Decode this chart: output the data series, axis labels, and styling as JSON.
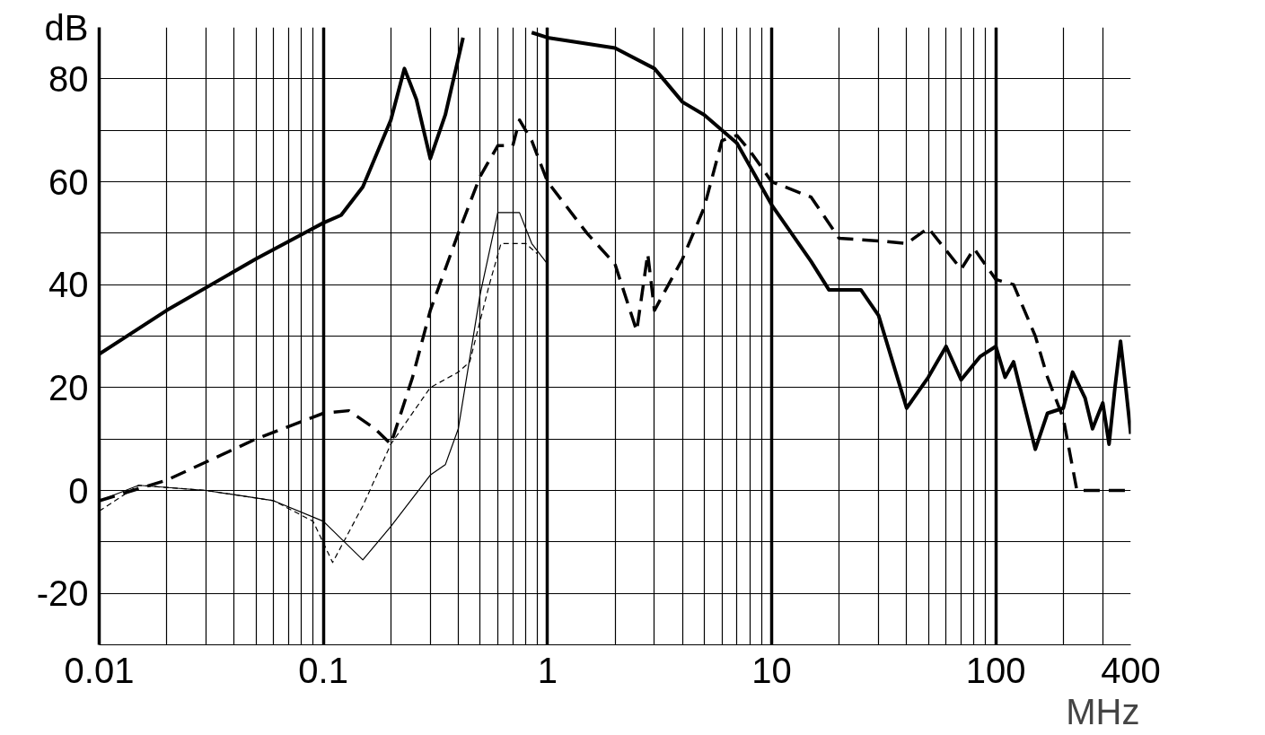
{
  "chart_data": {
    "type": "line",
    "xlabel": "MHz",
    "ylabel": "dB",
    "log": "x",
    "grid": true,
    "marker": "none",
    "xlim": [
      0.01,
      400
    ],
    "ylim": [
      -30,
      90
    ],
    "xticks": [
      0.01,
      {
        "value": 0.02,
        "label": null
      },
      {
        "value": 0.03,
        "label": null
      },
      {
        "value": 0.04,
        "label": null
      },
      {
        "value": 0.05,
        "label": null
      },
      {
        "value": 0.06,
        "label": null
      },
      {
        "value": 0.07,
        "label": null
      },
      {
        "value": 0.08,
        "label": null
      },
      {
        "value": 0.09,
        "label": null
      },
      0.1,
      {
        "value": 0.2,
        "label": null
      },
      {
        "value": 0.3,
        "label": null
      },
      {
        "value": 0.4,
        "label": null
      },
      {
        "value": 0.5,
        "label": null
      },
      {
        "value": 0.6,
        "label": null
      },
      {
        "value": 0.7,
        "label": null
      },
      {
        "value": 0.8,
        "label": null
      },
      {
        "value": 0.9,
        "label": null
      },
      1,
      {
        "value": 2,
        "label": null
      },
      {
        "value": 3,
        "label": null
      },
      {
        "value": 4,
        "label": null
      },
      {
        "value": 5,
        "label": null
      },
      {
        "value": 6,
        "label": null
      },
      {
        "value": 7,
        "label": null
      },
      {
        "value": 8,
        "label": null
      },
      {
        "value": 9,
        "label": null
      },
      10,
      {
        "value": 20,
        "label": null
      },
      {
        "value": 30,
        "label": null
      },
      {
        "value": 40,
        "label": null
      },
      {
        "value": 50,
        "label": null
      },
      {
        "value": 60,
        "label": null
      },
      {
        "value": 70,
        "label": null
      },
      {
        "value": 80,
        "label": null
      },
      {
        "value": 90,
        "label": null
      },
      100,
      {
        "value": 200,
        "label": null
      },
      {
        "value": 300,
        "label": null
      },
      400
    ],
    "yticks": [
      -20,
      {
        "value": -10,
        "label": null
      },
      0,
      {
        "value": 10,
        "label": null
      },
      20,
      {
        "value": 30,
        "label": null
      },
      40,
      {
        "value": 50,
        "label": null
      },
      60,
      {
        "value": 70,
        "label": null
      },
      80
    ],
    "series": [
      {
        "color": "#000000",
        "line_style": "solid",
        "x": [
          0.01,
          0.02,
          0.05,
          0.1,
          0.12,
          0.15,
          0.2,
          0.23,
          0.26,
          0.3,
          0.35,
          0.42,
          0.6,
          0.85,
          1,
          2,
          3,
          4,
          5,
          7,
          10,
          15,
          18,
          25,
          30,
          40,
          50,
          60,
          70,
          85,
          100,
          110,
          120,
          150,
          170,
          200,
          220,
          250,
          270,
          300,
          320,
          340,
          360,
          380,
          400
        ],
        "values": [
          26.5,
          35,
          45,
          52,
          53.5,
          59,
          72,
          82,
          76,
          64.5,
          73,
          88,
          null,
          89,
          88,
          86,
          82,
          75.5,
          73,
          67.5,
          55.5,
          44.5,
          39,
          39,
          34,
          16,
          22,
          28,
          21.5,
          26,
          28,
          22,
          25,
          8,
          15,
          16,
          23,
          18,
          12,
          17,
          9,
          20,
          29,
          20,
          11
        ]
      },
      {
        "color": "#000000",
        "line_style": "dashed",
        "x": [
          0.01,
          0.02,
          0.05,
          0.1,
          0.13,
          0.17,
          0.2,
          0.25,
          0.3,
          0.4,
          0.5,
          0.6,
          0.7,
          0.75,
          0.85,
          1,
          1.5,
          2,
          2.5,
          2.8,
          3,
          4,
          5,
          6,
          7,
          8,
          10,
          15,
          20,
          30,
          40,
          50,
          70,
          80,
          100,
          120,
          150,
          170,
          200,
          230,
          400
        ],
        "values": [
          -2,
          2,
          10,
          15,
          15.5,
          12,
          9,
          22,
          35,
          50,
          61,
          67,
          67,
          72,
          68,
          60,
          50,
          44,
          31,
          46,
          35,
          45,
          55,
          68,
          69,
          66,
          60,
          57,
          49,
          48.5,
          48,
          51,
          43,
          47,
          41,
          40,
          30,
          22,
          14,
          0,
          0
        ]
      },
      {
        "color": "#000000",
        "line_style": "solid",
        "x": [
          0.01,
          0.015,
          0.03,
          0.06,
          0.1,
          0.15,
          0.2,
          0.3,
          0.35,
          0.4,
          0.5,
          0.6,
          0.75,
          0.85,
          1
        ],
        "values": [
          -2,
          1,
          0,
          -2,
          -6,
          -13.5,
          -7,
          3,
          5,
          12,
          38,
          54,
          54,
          48,
          44
        ]
      },
      {
        "color": "#000000",
        "line_style": "dashed",
        "x": [
          0.01,
          0.015,
          0.03,
          0.06,
          0.09,
          0.11,
          0.15,
          0.2,
          0.3,
          0.4,
          0.45,
          0.55,
          0.62,
          0.8,
          0.9
        ],
        "values": [
          -4,
          1,
          0,
          -2,
          -6,
          -14,
          -3,
          9,
          20,
          23,
          25,
          40,
          48,
          48,
          46
        ]
      }
    ]
  }
}
